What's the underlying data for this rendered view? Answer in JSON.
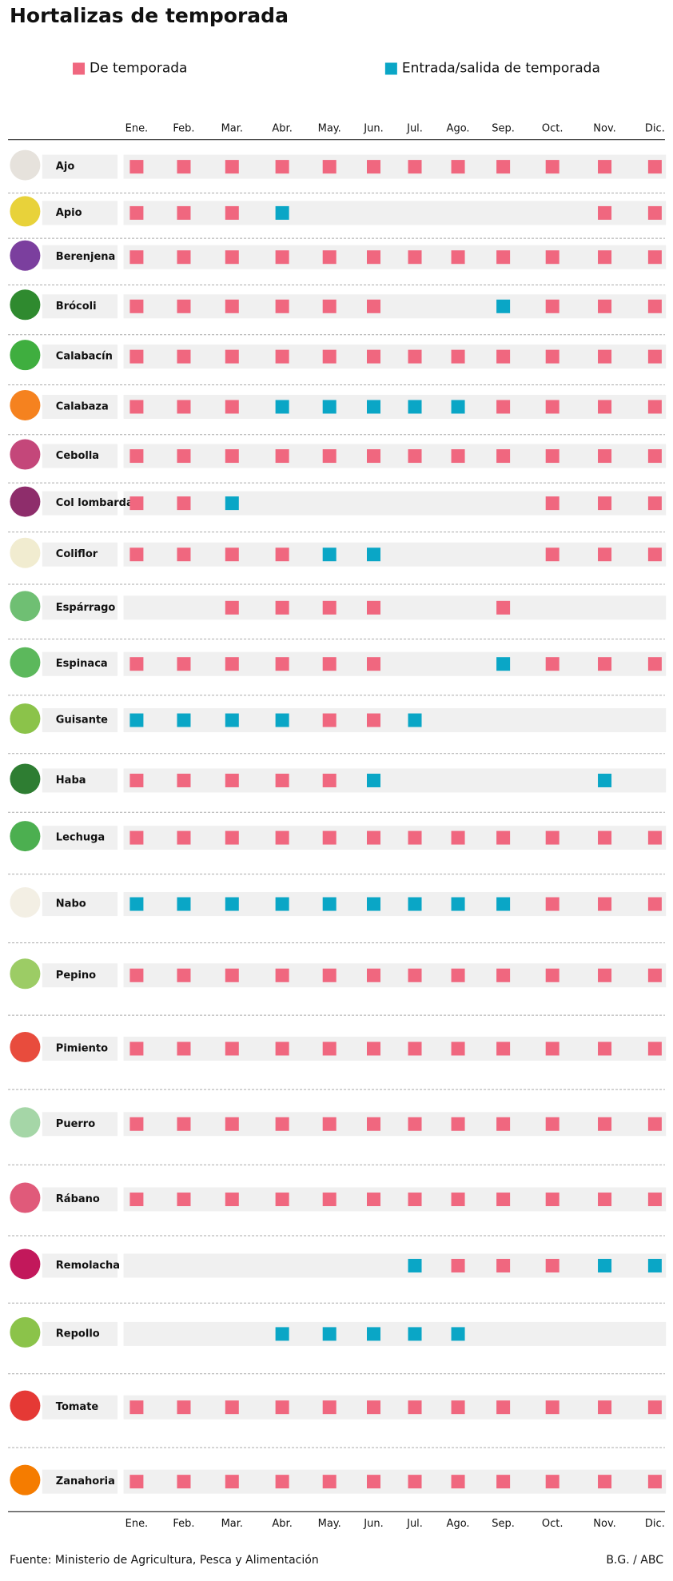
{
  "title": "Hortalizas de temporada",
  "legend": [
    {
      "label": "De temporada",
      "color": "#f0677f"
    },
    {
      "label": "Entrada/salida de temporada",
      "color": "#0aa6c6"
    }
  ],
  "months": [
    "Ene.",
    "Feb.",
    "Mar.",
    "Abr.",
    "May.",
    "Jun.",
    "Jul.",
    "Ago.",
    "Sep.",
    "Oct.",
    "Nov.",
    "Dic."
  ],
  "rows": [
    {
      "name": "Ajo",
      "cells": [
        0,
        0,
        0,
        0,
        0,
        0,
        0,
        0,
        0,
        0,
        0,
        0
      ]
    },
    {
      "name": "Apio",
      "cells": [
        0,
        0,
        0,
        1,
        null,
        null,
        null,
        null,
        null,
        null,
        0,
        0
      ]
    },
    {
      "name": "Berenjena",
      "cells": [
        0,
        0,
        0,
        0,
        0,
        0,
        0,
        0,
        0,
        0,
        0,
        0
      ]
    },
    {
      "name": "Brócoli",
      "cells": [
        0,
        0,
        0,
        0,
        0,
        0,
        null,
        null,
        1,
        0,
        0,
        0
      ]
    },
    {
      "name": "Calabacín",
      "cells": [
        0,
        0,
        0,
        0,
        0,
        0,
        0,
        0,
        0,
        0,
        0,
        0
      ]
    },
    {
      "name": "Calabaza",
      "cells": [
        0,
        0,
        0,
        1,
        1,
        1,
        1,
        1,
        0,
        0,
        0,
        0
      ]
    },
    {
      "name": "Cebolla",
      "cells": [
        0,
        0,
        0,
        0,
        0,
        0,
        0,
        0,
        0,
        0,
        0,
        0
      ]
    },
    {
      "name": "Col lombarda",
      "cells": [
        0,
        0,
        1,
        null,
        null,
        null,
        null,
        null,
        null,
        0,
        0,
        0
      ]
    },
    {
      "name": "Coliflor",
      "cells": [
        0,
        0,
        0,
        0,
        1,
        1,
        null,
        null,
        null,
        0,
        0,
        0
      ]
    },
    {
      "name": "Espárrago",
      "cells": [
        null,
        null,
        0,
        0,
        0,
        0,
        null,
        null,
        0,
        null,
        null,
        null
      ]
    },
    {
      "name": "Espinaca",
      "cells": [
        0,
        0,
        0,
        0,
        0,
        0,
        null,
        null,
        1,
        0,
        0,
        0
      ]
    },
    {
      "name": "Guisante",
      "cells": [
        1,
        1,
        1,
        1,
        0,
        0,
        1,
        null,
        null,
        null,
        null,
        null
      ]
    },
    {
      "name": "Haba",
      "cells": [
        0,
        0,
        0,
        0,
        0,
        1,
        null,
        null,
        null,
        null,
        1,
        null
      ]
    },
    {
      "name": "Lechuga",
      "cells": [
        0,
        0,
        0,
        0,
        0,
        0,
        0,
        0,
        0,
        0,
        0,
        0
      ]
    },
    {
      "name": "Nabo",
      "cells": [
        1,
        1,
        1,
        1,
        1,
        1,
        1,
        1,
        1,
        0,
        0,
        0
      ]
    },
    {
      "name": "Pepino",
      "cells": [
        0,
        0,
        0,
        0,
        0,
        0,
        0,
        0,
        0,
        0,
        0,
        0
      ]
    },
    {
      "name": "Pimiento",
      "cells": [
        0,
        0,
        0,
        0,
        0,
        0,
        0,
        0,
        0,
        0,
        0,
        0
      ]
    },
    {
      "name": "Puerro",
      "cells": [
        0,
        0,
        0,
        0,
        0,
        0,
        0,
        0,
        0,
        0,
        0,
        0
      ]
    },
    {
      "name": "Rábano",
      "cells": [
        0,
        0,
        0,
        0,
        0,
        0,
        0,
        0,
        0,
        0,
        0,
        0
      ]
    },
    {
      "name": "Remolacha",
      "cells": [
        null,
        null,
        null,
        null,
        null,
        null,
        1,
        0,
        0,
        0,
        1,
        1
      ]
    },
    {
      "name": "Repollo",
      "cells": [
        null,
        null,
        null,
        1,
        1,
        1,
        1,
        1,
        null,
        null,
        null,
        null
      ]
    },
    {
      "name": "Tomate",
      "cells": [
        0,
        0,
        0,
        0,
        0,
        0,
        0,
        0,
        0,
        0,
        0,
        0
      ]
    },
    {
      "name": "Zanahoria",
      "cells": [
        0,
        0,
        0,
        0,
        0,
        0,
        0,
        0,
        0,
        0,
        0,
        0
      ]
    }
  ],
  "source": "Fuente: Ministerio de Agricultura, Pesca y Alimentación",
  "credit": "B.G. / ABC"
}
